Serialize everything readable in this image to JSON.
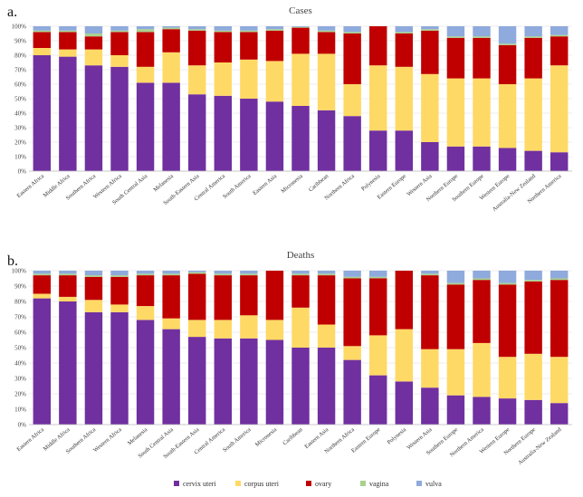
{
  "chart_data": [
    {
      "panel_label": "a.",
      "title": "Cases",
      "type": "bar",
      "stacked": true,
      "ylim": [
        0,
        100
      ],
      "yticks": [
        "0%",
        "10%",
        "20%",
        "30%",
        "40%",
        "50%",
        "60%",
        "70%",
        "80%",
        "90%",
        "100%"
      ],
      "categories": [
        "Eastern Africa",
        "Middle Africa",
        "Southern Africa",
        "Western Africa",
        "South Central Asia",
        "Melanesia",
        "South-Eastern Asia",
        "Central America",
        "South America",
        "Eastern Asia",
        "Micronesia",
        "Caribbean",
        "Northern Africa",
        "Polynesia",
        "Eastern Europe",
        "Western Asia",
        "Northern Europe",
        "Southern Europe",
        "Western Europe",
        "Australia-New Zealand",
        "Northern America"
      ],
      "series": [
        {
          "name": "cervix uteri",
          "values": [
            80,
            79,
            73,
            72,
            61,
            61,
            53,
            52,
            50,
            48,
            45,
            42,
            38,
            28,
            28,
            20,
            17,
            17,
            16,
            14,
            13
          ]
        },
        {
          "name": "corpus uteri",
          "values": [
            5,
            5,
            11,
            8,
            11,
            21,
            20,
            23,
            27,
            28,
            36,
            39,
            22,
            45,
            44,
            47,
            47,
            47,
            44,
            50,
            60
          ]
        },
        {
          "name": "ovary",
          "values": [
            11,
            12,
            9,
            16,
            24,
            16,
            24,
            21,
            19,
            21,
            18,
            15,
            35,
            27,
            23,
            30,
            28,
            28,
            27,
            28,
            20
          ]
        },
        {
          "name": "vagina",
          "values": [
            1,
            1,
            2,
            1,
            2,
            1,
            1,
            1,
            1,
            1,
            0.5,
            1,
            1,
            0,
            1,
            1,
            1,
            1,
            1,
            1,
            1
          ]
        },
        {
          "name": "vulva",
          "values": [
            3,
            3,
            5,
            3,
            2,
            1,
            2,
            3,
            3,
            2,
            0.5,
            3,
            4,
            0,
            4,
            2,
            7,
            7,
            12,
            7,
            6
          ]
        }
      ]
    },
    {
      "panel_label": "b.",
      "title": "Deaths",
      "type": "bar",
      "stacked": true,
      "ylim": [
        0,
        100
      ],
      "yticks": [
        "0%",
        "10%",
        "20%",
        "30%",
        "40%",
        "50%",
        "60%",
        "70%",
        "80%",
        "90%",
        "100%"
      ],
      "categories": [
        "Eastern Africa",
        "Middle Africa",
        "Southern Africa",
        "Western Africa",
        "Melanesia",
        "South Central Asia",
        "South-Eastern Asia",
        "Central America",
        "South America",
        "Micronesia",
        "Caribbean",
        "Eastern Asia",
        "Northern Africa",
        "Eastern Europe",
        "Polynesia",
        "Western Asia",
        "Southern Europe",
        "Northern America",
        "Western Europe",
        "Northern Europe",
        "Australia-New Zealand"
      ],
      "series": [
        {
          "name": "cervix uteri",
          "values": [
            82,
            80,
            73,
            73,
            68,
            62,
            57,
            56,
            56,
            55,
            50,
            50,
            42,
            32,
            28,
            24,
            19,
            18,
            17,
            16,
            14
          ]
        },
        {
          "name": "corpus uteri",
          "values": [
            3,
            3,
            8,
            5,
            9,
            7,
            11,
            12,
            15,
            13,
            26,
            15,
            9,
            26,
            34,
            25,
            30,
            35,
            27,
            30,
            30
          ]
        },
        {
          "name": "ovary",
          "values": [
            12,
            14,
            15,
            18,
            20,
            28,
            30,
            29,
            26,
            32,
            21,
            32,
            44,
            37,
            38,
            48,
            42,
            41,
            47,
            47,
            50
          ]
        },
        {
          "name": "vagina",
          "values": [
            1,
            1,
            1,
            1,
            1,
            1,
            1,
            1,
            1,
            0,
            1,
            1,
            1,
            1,
            0,
            1,
            1,
            1,
            1,
            1,
            1
          ]
        },
        {
          "name": "vulva",
          "values": [
            2,
            2,
            3,
            3,
            2,
            2,
            1,
            2,
            2,
            0,
            2,
            2,
            4,
            4,
            0,
            2,
            8,
            5,
            8,
            6,
            5
          ]
        }
      ]
    }
  ],
  "colors": {
    "cervix uteri": "#7030a0",
    "corpus uteri": "#ffd966",
    "ovary": "#c00000",
    "vagina": "#a9d18e",
    "vulva": "#8faadc"
  },
  "legend": [
    "cervix uteri",
    "corpus uteri",
    "ovary",
    "vagina",
    "vulva"
  ]
}
